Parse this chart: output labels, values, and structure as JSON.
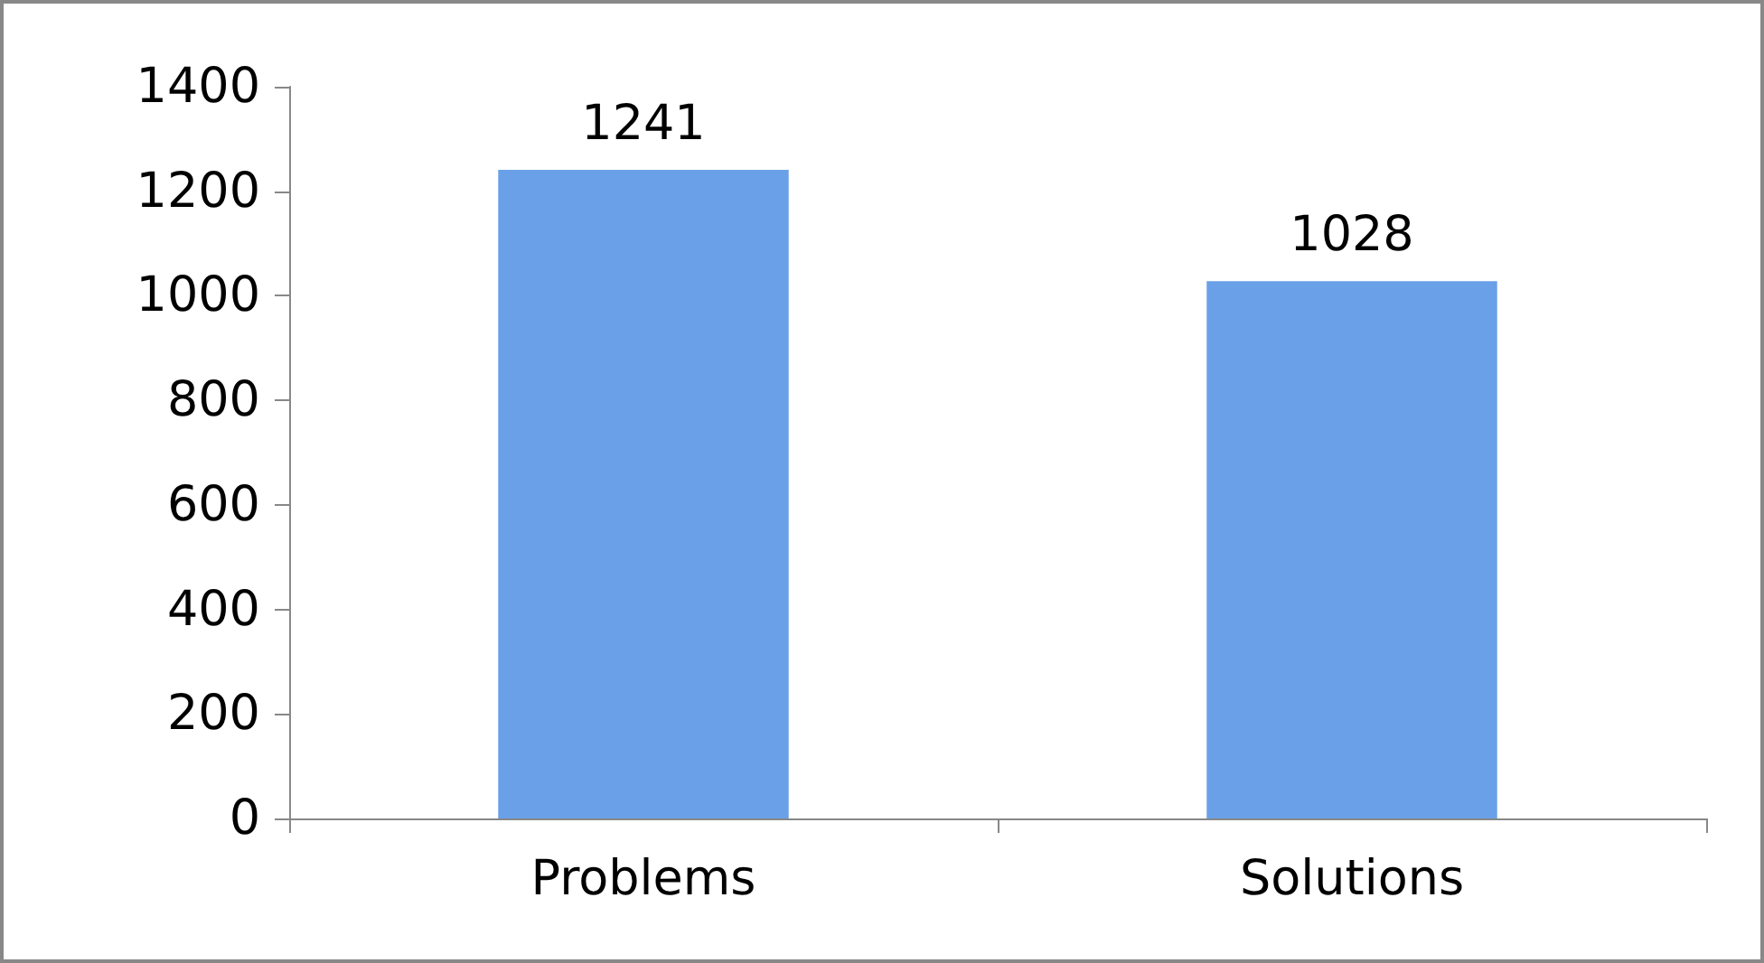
{
  "chart_data": {
    "type": "bar",
    "categories": [
      "Problems",
      "Solutions"
    ],
    "values": [
      1241,
      1028
    ],
    "color": "#6aa0e8",
    "ylim": [
      0,
      1400
    ],
    "yticks": [
      0,
      200,
      400,
      600,
      800,
      1000,
      1200,
      1400
    ],
    "grid": false,
    "data_labels": true
  }
}
